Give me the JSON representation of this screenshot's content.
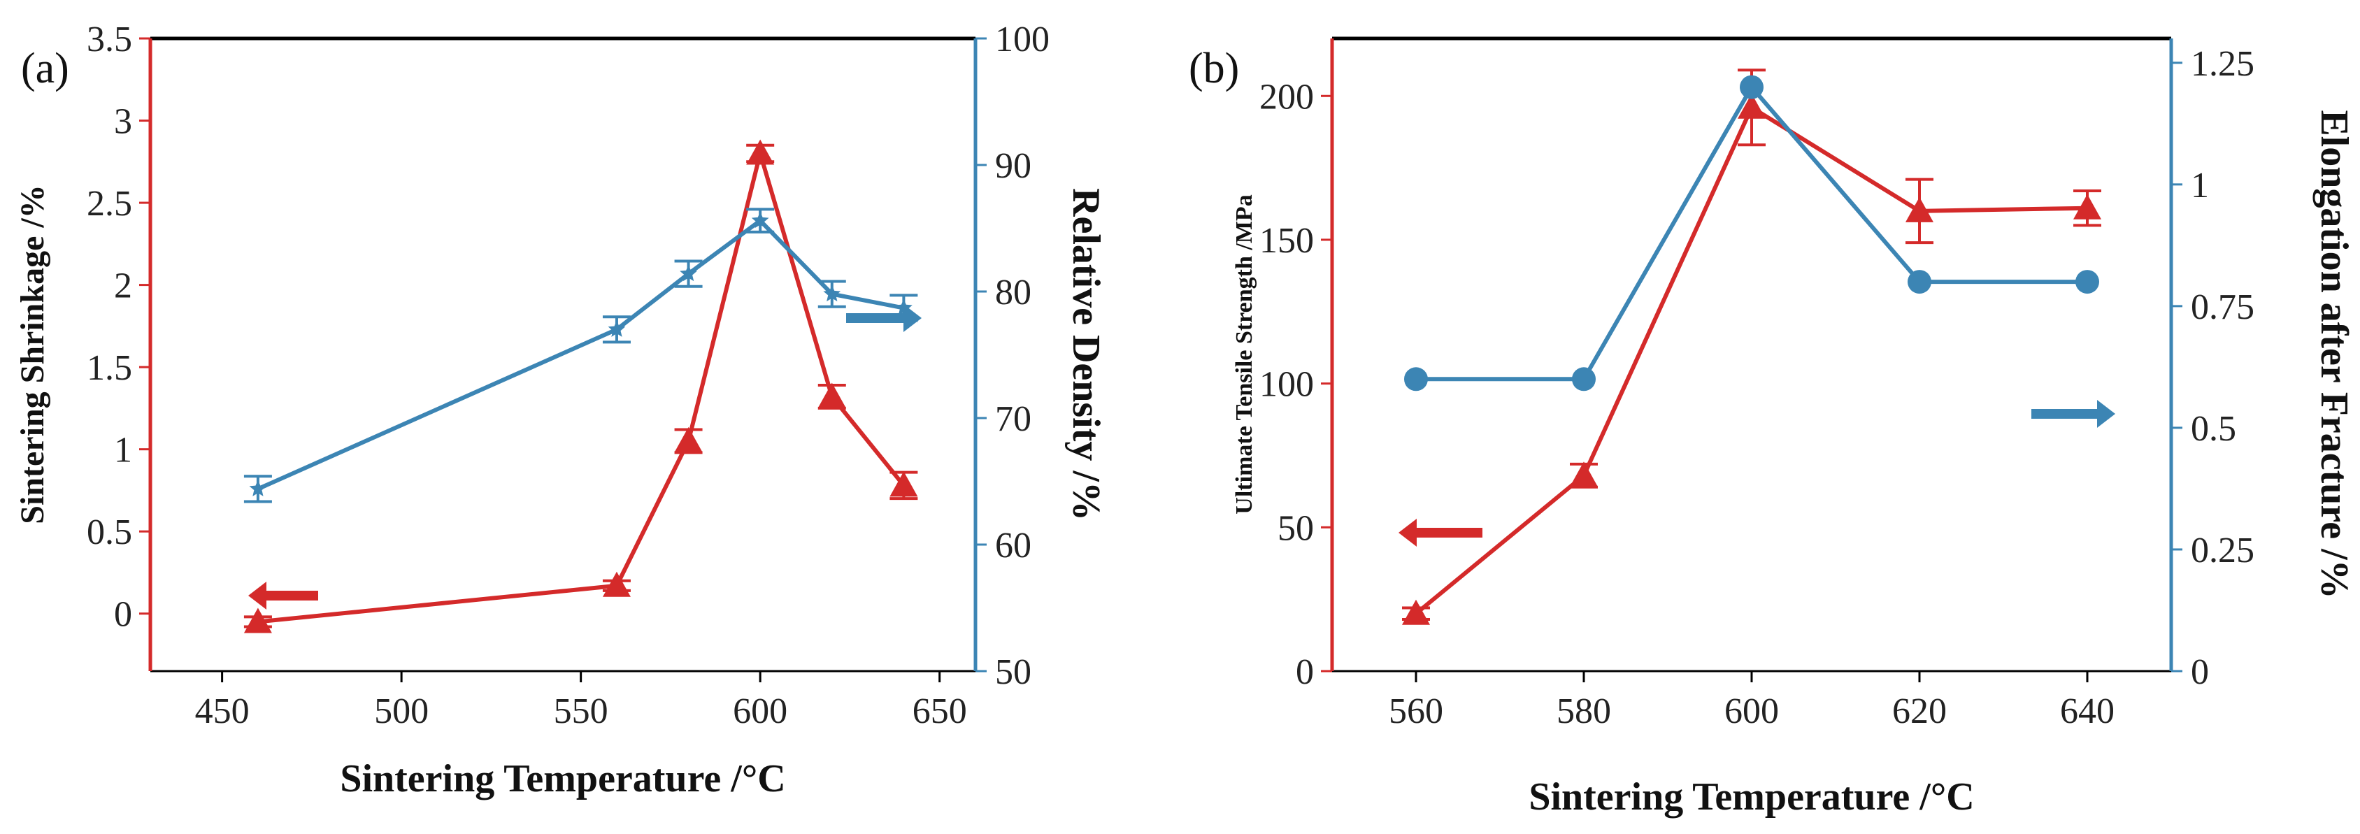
{
  "colors": {
    "red": "#d42a2a",
    "blue": "#3c85b4",
    "axis": "#000000"
  },
  "chart_data": [
    {
      "panel_label": "(a)",
      "type": "line",
      "xlabel": "Sintering Temperature /°C",
      "ylabel": "Sintering Shrinkage /%",
      "y2label": "Relative Density /%",
      "xlim": [
        430,
        660
      ],
      "ylim": [
        -0.35,
        3.5
      ],
      "y2lim": [
        50,
        100
      ],
      "xticks": [
        450,
        500,
        550,
        600,
        650
      ],
      "xtick_labels": [
        "450",
        "500",
        "550",
        "600",
        "650"
      ],
      "yticks": [
        0,
        0.5,
        1,
        1.5,
        2,
        2.5,
        3,
        3.5
      ],
      "ytick_labels": [
        "0",
        "0.5",
        "1",
        "1.5",
        "2",
        "2.5",
        "3",
        "3.5"
      ],
      "y2ticks": [
        50,
        60,
        70,
        80,
        90,
        100
      ],
      "y2tick_labels": [
        "50",
        "60",
        "70",
        "80",
        "90",
        "100"
      ],
      "grid": false,
      "series": [
        {
          "axis": "left",
          "color": "#d42a2a",
          "marker": "triangle",
          "arrow": "left",
          "x": [
            460,
            560,
            580,
            600,
            620,
            640
          ],
          "y": [
            -0.05,
            0.17,
            1.05,
            2.8,
            1.32,
            0.78
          ],
          "err": [
            0.03,
            0.03,
            0.07,
            0.05,
            0.07,
            0.08
          ]
        },
        {
          "axis": "right",
          "color": "#3c85b4",
          "marker": "star",
          "arrow": "right",
          "x": [
            460,
            560,
            580,
            600,
            620,
            640
          ],
          "y": [
            64.4,
            77.0,
            81.4,
            85.6,
            79.8,
            78.7
          ],
          "err": [
            1.0,
            1.0,
            1.0,
            0.9,
            1.0,
            1.0
          ]
        }
      ]
    },
    {
      "panel_label": "(b)",
      "type": "line",
      "xlabel": "Sintering Temperature /°C",
      "ylabel": "Ultimate Tensile Strength /MPa",
      "y2label": "Elongation after Fracture /%",
      "xlim": [
        550,
        650
      ],
      "ylim": [
        0,
        220
      ],
      "y2lim": [
        0,
        1.3
      ],
      "xticks": [
        560,
        580,
        600,
        620,
        640
      ],
      "xtick_labels": [
        "560",
        "580",
        "600",
        "620",
        "640"
      ],
      "yticks": [
        0,
        50,
        100,
        150,
        200
      ],
      "ytick_labels": [
        "0",
        "50",
        "100",
        "150",
        "200"
      ],
      "y2ticks": [
        0,
        0.25,
        0.5,
        0.75,
        1,
        1.25
      ],
      "y2tick_labels": [
        "0",
        "0.25",
        "0.5",
        "0.75",
        "1",
        "1.25"
      ],
      "grid": false,
      "series": [
        {
          "axis": "left",
          "color": "#d42a2a",
          "marker": "triangle",
          "arrow": "left",
          "x": [
            560,
            580,
            600,
            620,
            640
          ],
          "y": [
            20,
            68,
            196,
            160,
            161
          ],
          "err": [
            2,
            4,
            13,
            11,
            6
          ]
        },
        {
          "axis": "right",
          "color": "#3c85b4",
          "marker": "circle",
          "arrow": "right",
          "x": [
            560,
            580,
            600,
            620,
            640
          ],
          "y": [
            0.6,
            0.6,
            1.2,
            0.8,
            0.8
          ],
          "err": [
            0,
            0,
            0,
            0,
            0
          ]
        }
      ]
    }
  ]
}
